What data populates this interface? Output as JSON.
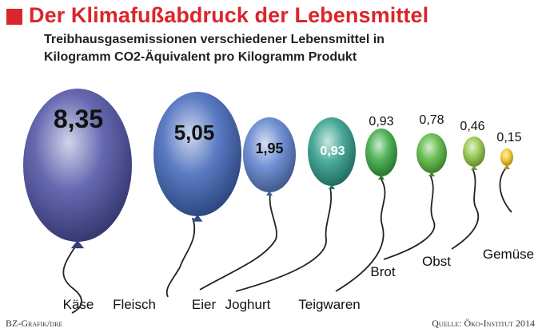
{
  "header": {
    "title": "Der Klimafußabdruck der Lebensmittel",
    "subtitle_line1": "Treibhausgasemissionen verschiedener Lebensmittel in",
    "subtitle_line2": "Kilogramm CO2-Äquivalent pro Kilogramm Produkt"
  },
  "footer": {
    "credit": "BZ-Grafik/dre",
    "source": "Quelle: Öko-Institut 2014"
  },
  "colors": {
    "title": "#d9262b",
    "kaese": "#4b4fa3",
    "fleisch": "#3e64b8",
    "joghurt": "#5a7fcc",
    "teigwaren": "#2a9a88",
    "brot": "#34a83d",
    "obst": "#55b53a",
    "gemuese_light": "#8cc63e",
    "gemuese": "#f2c318"
  },
  "chart_data": {
    "type": "bubble",
    "unit": "kg CO2-Äquivalent pro kg Produkt",
    "categories": [
      "Käse",
      "Fleisch",
      "Eier",
      "Joghurt",
      "Teigwaren",
      "Brot",
      "Obst",
      "Gemüse"
    ],
    "value_labels": [
      "8,35",
      "5,05",
      "1,95",
      "0,93",
      "0,93",
      "0,78",
      "0,46",
      "0,15"
    ],
    "balloons": [
      {
        "value": 8.35,
        "label": "8,35",
        "color": "#4b4fa3",
        "text_inside": true,
        "text_color": "#111111",
        "name": "kaese"
      },
      {
        "value": 5.05,
        "label": "5,05",
        "color": "#3e64b8",
        "text_inside": true,
        "text_color": "#111111",
        "name": "fleisch"
      },
      {
        "value": 1.95,
        "label": "1,95",
        "color": "#5a7fcc",
        "text_inside": true,
        "text_color": "#111111",
        "name": "eier"
      },
      {
        "value": 0.93,
        "label": "0,93",
        "color": "#2a9a88",
        "text_inside": true,
        "text_color": "#ffffff",
        "name": "joghurt"
      },
      {
        "value": 0.93,
        "label": "0,93",
        "color": "#34a83d",
        "text_inside": false,
        "text_color": "#111111",
        "name": "teigwaren"
      },
      {
        "value": 0.78,
        "label": "0,78",
        "color": "#55b53a",
        "text_inside": false,
        "text_color": "#111111",
        "name": "brot"
      },
      {
        "value": 0.46,
        "label": "0,46",
        "color": "#8cc63e",
        "text_inside": false,
        "text_color": "#111111",
        "name": "obst"
      },
      {
        "value": 0.15,
        "label": "0,15",
        "color": "#f2c318",
        "text_inside": false,
        "text_color": "#111111",
        "name": "gemuese"
      }
    ]
  }
}
